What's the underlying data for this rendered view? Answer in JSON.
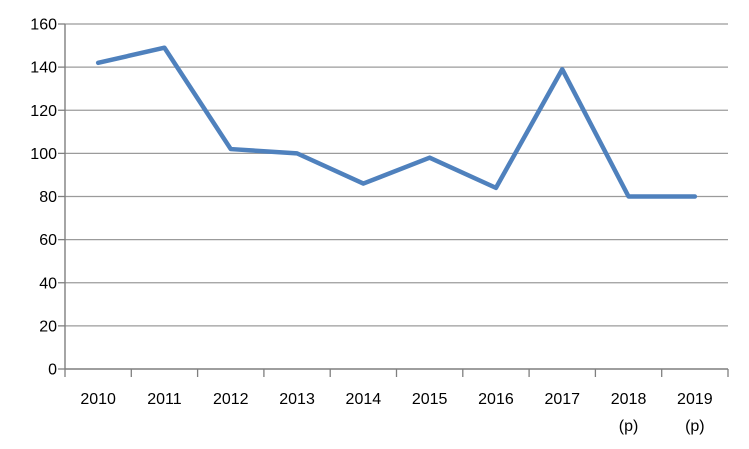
{
  "chart_data": {
    "type": "line",
    "title": "",
    "xlabel": "",
    "ylabel": "",
    "categories": [
      "2010",
      "2011",
      "2012",
      "2013",
      "2014",
      "2015",
      "2016",
      "2017",
      "2018",
      "2019"
    ],
    "category_second_lines": [
      "",
      "",
      "",
      "",
      "",
      "",
      "",
      "",
      "(p)",
      "(p)"
    ],
    "series": [
      {
        "name": "",
        "values": [
          142,
          149,
          102,
          100,
          86,
          98,
          84,
          139,
          80,
          80
        ]
      }
    ],
    "ylim": [
      0,
      160
    ],
    "yticks": [
      0,
      20,
      40,
      60,
      80,
      100,
      120,
      140,
      160
    ],
    "grid": "horizontal-only",
    "legend": "none",
    "colors": {
      "line": "#4F81BD",
      "gridline": "#9b9b9b",
      "axis": "#7f7f7f",
      "text": "#000000",
      "background": "#FFFFFF"
    }
  }
}
